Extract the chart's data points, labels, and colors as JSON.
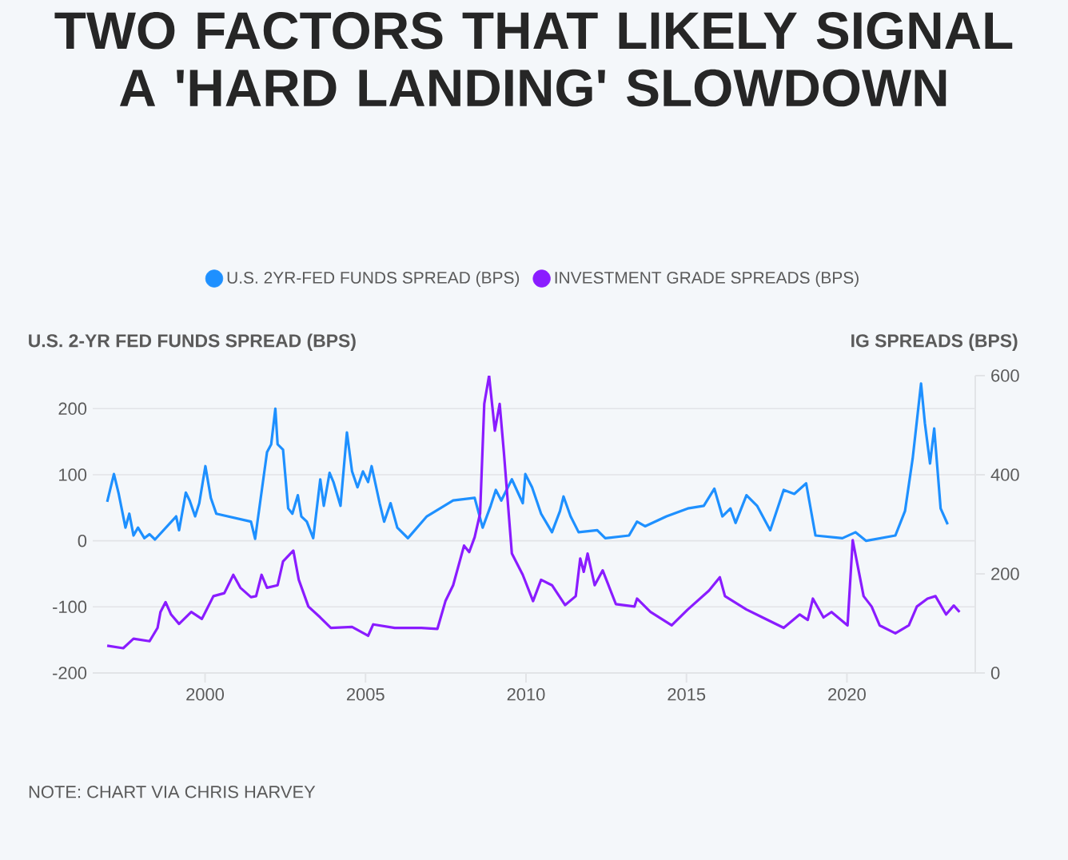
{
  "chart_data": {
    "type": "line",
    "title": "TWO FACTORS THAT LIKELY SIGNAL A 'HARD LANDING' SLOWDOWN",
    "ylabel": "U.S. 2-YR FED FUNDS SPREAD (BPS)",
    "y2label": "IG SPREADS (BPS)",
    "annotations": [
      "NOTE: CHART VIA CHRIS HARVEY"
    ],
    "xlim": [
      1996.5,
      2024
    ],
    "xticks": [
      2000,
      2005,
      2010,
      2015,
      2020
    ],
    "ylim": [
      -200,
      250
    ],
    "yticks": [
      -200,
      -100,
      0,
      100,
      200
    ],
    "y2lim": [
      0,
      600
    ],
    "y2ticks": [
      0,
      200,
      400,
      600
    ],
    "grid": "y",
    "legend": "top",
    "marker": "none",
    "line_style": "solid",
    "series": [
      {
        "name": "U.S. 2YR-FED FUNDS SPREAD (BPS)",
        "color": "#1e90ff",
        "x": [
          1996.95,
          1997.16,
          1997.31,
          1997.52,
          1997.64,
          1997.77,
          1997.91,
          1998.11,
          1998.27,
          1998.44,
          1999.1,
          1999.19,
          1999.4,
          1999.52,
          1999.69,
          1999.82,
          2000.01,
          2000.18,
          2000.35,
          2001.43,
          2001.56,
          2001.93,
          2002.06,
          2002.19,
          2002.26,
          2002.43,
          2002.59,
          2002.72,
          2002.89,
          2003.0,
          2003.17,
          2003.37,
          2003.59,
          2003.7,
          2003.88,
          2004.0,
          2004.22,
          2004.42,
          2004.58,
          2004.75,
          2004.92,
          2005.08,
          2005.19,
          2005.44,
          2005.58,
          2005.78,
          2005.99,
          2006.32,
          2006.91,
          2007.73,
          2008.4,
          2008.65,
          2008.9,
          2009.06,
          2009.23,
          2009.56,
          2009.9,
          2009.98,
          2010.19,
          2010.47,
          2010.81,
          2011.06,
          2011.17,
          2011.39,
          2011.64,
          2012.22,
          2012.47,
          2013.21,
          2013.46,
          2013.71,
          2014.38,
          2015.04,
          2015.54,
          2015.87,
          2016.12,
          2016.37,
          2016.53,
          2016.87,
          2017.2,
          2017.61,
          2018.03,
          2018.36,
          2018.73,
          2019.02,
          2019.86,
          2020.27,
          2020.6,
          2021.51,
          2021.81,
          2022.05,
          2022.31,
          2022.43,
          2022.59,
          2022.72,
          2022.92,
          2023.14
        ],
        "values": [
          59,
          101,
          71,
          20,
          41,
          8,
          20,
          4,
          10,
          2,
          37,
          16,
          73,
          61,
          37,
          57,
          113,
          65,
          41,
          29,
          3,
          134,
          146,
          200,
          146,
          138,
          49,
          41,
          69,
          37,
          29,
          4,
          93,
          53,
          103,
          89,
          53,
          164,
          105,
          81,
          105,
          89,
          113,
          57,
          29,
          57,
          20,
          4,
          37,
          61,
          65,
          20,
          53,
          77,
          61,
          93,
          57,
          101,
          81,
          41,
          13,
          45,
          67,
          37,
          13,
          16,
          4,
          8,
          29,
          22,
          37,
          49,
          53,
          79,
          37,
          49,
          27,
          69,
          53,
          16,
          77,
          71,
          87,
          8,
          4,
          13,
          0,
          8,
          45,
          125,
          238,
          178,
          117,
          170,
          49,
          25
        ]
      },
      {
        "name": "INVESTMENT GRADE SPREADS (BPS)",
        "color": "#8a1cff",
        "axis": "y2",
        "x": [
          1996.95,
          1997.45,
          1997.77,
          1998.27,
          1998.52,
          1998.61,
          1998.77,
          1998.94,
          1999.19,
          1999.57,
          1999.9,
          2000.26,
          2000.6,
          2000.88,
          2001.1,
          2001.43,
          2001.59,
          2001.76,
          2001.93,
          2002.26,
          2002.43,
          2002.75,
          2002.92,
          2003.22,
          2003.59,
          2003.92,
          2004.58,
          2005.08,
          2005.24,
          2005.91,
          2006.74,
          2007.24,
          2007.49,
          2007.73,
          2008.07,
          2008.23,
          2008.4,
          2008.57,
          2008.7,
          2008.85,
          2009.03,
          2009.18,
          2009.31,
          2009.56,
          2009.9,
          2010.22,
          2010.47,
          2010.81,
          2011.22,
          2011.55,
          2011.69,
          2011.8,
          2011.92,
          2012.14,
          2012.39,
          2012.8,
          2013.38,
          2013.46,
          2013.88,
          2014.54,
          2015.04,
          2015.7,
          2016.04,
          2016.2,
          2016.87,
          2017.37,
          2018.03,
          2018.53,
          2018.78,
          2018.94,
          2019.27,
          2019.52,
          2020.02,
          2020.18,
          2020.52,
          2020.77,
          2021.02,
          2021.51,
          2021.93,
          2022.18,
          2022.51,
          2022.76,
          2023.09,
          2023.33,
          2023.51
        ],
        "values": [
          55,
          50,
          69,
          64,
          91,
          123,
          143,
          118,
          99,
          123,
          109,
          155,
          161,
          198,
          172,
          153,
          155,
          198,
          172,
          177,
          225,
          247,
          188,
          134,
          112,
          91,
          93,
          75,
          98,
          91,
          91,
          89,
          145,
          177,
          257,
          244,
          274,
          322,
          543,
          600,
          489,
          543,
          446,
          241,
          198,
          145,
          188,
          177,
          137,
          155,
          231,
          204,
          241,
          177,
          207,
          139,
          134,
          150,
          123,
          96,
          128,
          166,
          193,
          155,
          128,
          112,
          91,
          118,
          107,
          150,
          112,
          123,
          96,
          268,
          155,
          134,
          96,
          80,
          96,
          134,
          150,
          155,
          118,
          136,
          123
        ]
      }
    ]
  }
}
